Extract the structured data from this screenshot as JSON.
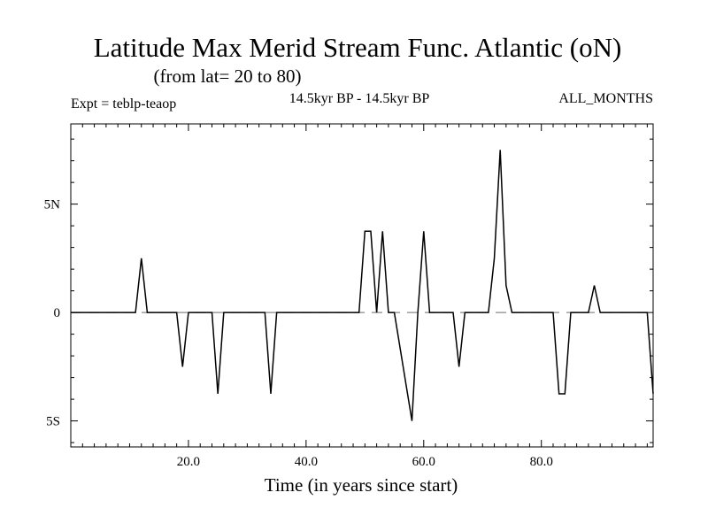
{
  "chart_data": {
    "type": "line",
    "title": "Latitude Max Merid Stream Func. Atlantic (oN)",
    "subtitle": "(from lat= 20 to 80)",
    "header_left": "Expt = teblp-teaop",
    "header_center": "14.5kyr BP - 14.5kyr BP",
    "header_right": "ALL_MONTHS",
    "xlabel": "Time (in years since start)",
    "ylabel": "",
    "xlim": [
      0,
      99
    ],
    "ylim": [
      -6.2,
      8.7
    ],
    "x_ticks": [
      {
        "value": 20,
        "label": "20.0"
      },
      {
        "value": 40,
        "label": "40.0"
      },
      {
        "value": 60,
        "label": "60.0"
      },
      {
        "value": 80,
        "label": "80.0"
      }
    ],
    "y_ticks": [
      {
        "value": 5,
        "label": "5N"
      },
      {
        "value": 0,
        "label": "0"
      },
      {
        "value": -5,
        "label": "5S"
      }
    ],
    "zero_line": {
      "value": 0,
      "style": "dashed",
      "color": "#888888"
    },
    "grid": false,
    "series": [
      {
        "color": "#000000",
        "x": [
          0,
          11,
          12,
          13,
          18,
          19,
          20,
          24,
          25,
          26,
          33,
          34,
          35,
          49,
          50,
          51,
          52,
          53,
          54,
          55,
          58,
          59,
          60,
          61,
          65,
          66,
          67,
          71,
          72,
          73,
          74,
          75,
          76,
          82,
          83,
          84,
          85,
          88,
          89,
          90,
          98,
          99
        ],
        "y": [
          0,
          0,
          2.5,
          0,
          0,
          -2.5,
          0,
          0,
          -3.75,
          0,
          0,
          -3.75,
          0,
          0,
          3.75,
          3.75,
          0,
          3.75,
          0,
          0,
          -5.0,
          0,
          3.75,
          0,
          0,
          -2.5,
          0,
          0,
          2.5,
          7.5,
          1.25,
          0,
          0,
          0,
          -3.75,
          -3.75,
          0,
          0,
          1.25,
          0,
          0,
          -3.75
        ]
      }
    ]
  }
}
